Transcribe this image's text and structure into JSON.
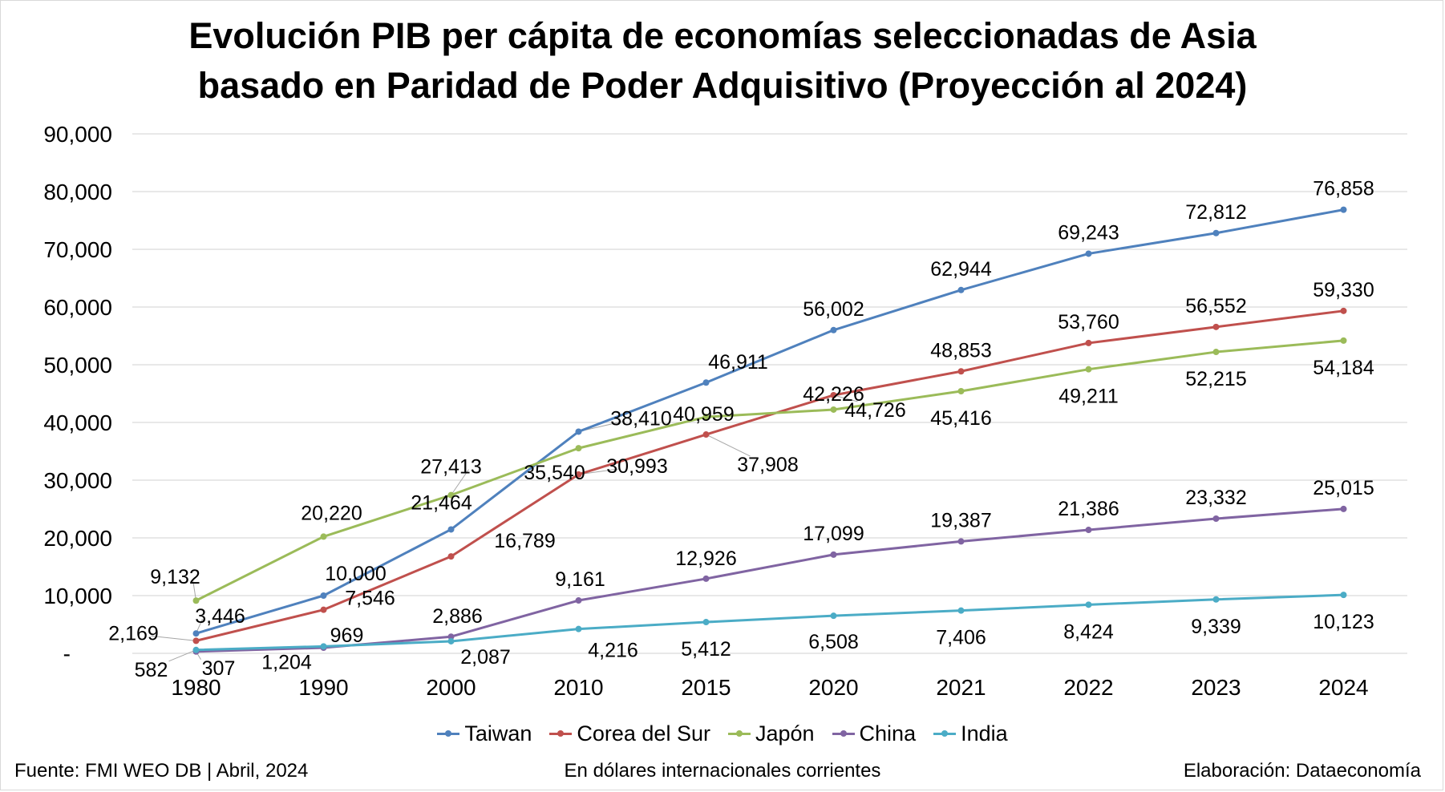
{
  "chart_data": {
    "type": "line",
    "title_line1": "Evolución PIB per cápita de economías seleccionadas de Asia",
    "title_line2": "basado en Paridad de Poder Adquisitivo (Proyección al 2024)",
    "categories": [
      "1980",
      "1990",
      "2000",
      "2010",
      "2015",
      "2020",
      "2021",
      "2022",
      "2023",
      "2024"
    ],
    "ylim": [
      0,
      90000
    ],
    "yticks": [
      0,
      10000,
      20000,
      30000,
      40000,
      50000,
      60000,
      70000,
      80000,
      90000
    ],
    "ytick_labels": [
      "-",
      "10,000",
      "20,000",
      "30,000",
      "40,000",
      "50,000",
      "60,000",
      "70,000",
      "80,000",
      "90,000"
    ],
    "grid": true,
    "legend_position": "bottom",
    "series": [
      {
        "name": "Taiwan",
        "color": "#4f81bd",
        "values": [
          3446,
          10000,
          21464,
          38410,
          46911,
          56002,
          62944,
          69243,
          72812,
          76858
        ],
        "labels": [
          "3,446",
          "10,000",
          "21,464",
          "38,410",
          "46,911",
          "56,002",
          "62,944",
          "69,243",
          "72,812",
          "76,858"
        ]
      },
      {
        "name": "Corea del Sur",
        "color": "#c0504d",
        "values": [
          2169,
          7546,
          16789,
          30993,
          37908,
          44726,
          48853,
          53760,
          56552,
          59330
        ],
        "labels": [
          "2,169",
          "7,546",
          "16,789",
          "30,993",
          "37,908",
          "44,726",
          "48,853",
          "53,760",
          "56,552",
          "59,330"
        ]
      },
      {
        "name": "Japón",
        "color": "#9bbb59",
        "values": [
          9132,
          20220,
          27413,
          35540,
          40959,
          42226,
          45416,
          49211,
          52215,
          54184
        ],
        "labels": [
          "9,132",
          "20,220",
          "27,413",
          "35,540",
          "40,959",
          "42,226",
          "45,416",
          "49,211",
          "52,215",
          "54,184"
        ]
      },
      {
        "name": "China",
        "color": "#8064a2",
        "values": [
          307,
          969,
          2886,
          9161,
          12926,
          17099,
          19387,
          21386,
          23332,
          25015
        ],
        "labels": [
          "307",
          "969",
          "2,886",
          "9,161",
          "12,926",
          "17,099",
          "19,387",
          "21,386",
          "23,332",
          "25,015"
        ]
      },
      {
        "name": "India",
        "color": "#4bacc6",
        "values": [
          582,
          1204,
          2087,
          4216,
          5412,
          6508,
          7406,
          8424,
          9339,
          10123
        ],
        "labels": [
          "582",
          "1,204",
          "2,087",
          "4,216",
          "5,412",
          "6,508",
          "7,406",
          "8,424",
          "9,339",
          "10,123"
        ]
      }
    ]
  },
  "footer": {
    "source": "Fuente: FMI WEO DB | Abril, 2024",
    "unit_note": "En dólares internacionales corrientes",
    "credit": "Elaboración: Dataeconomía"
  }
}
